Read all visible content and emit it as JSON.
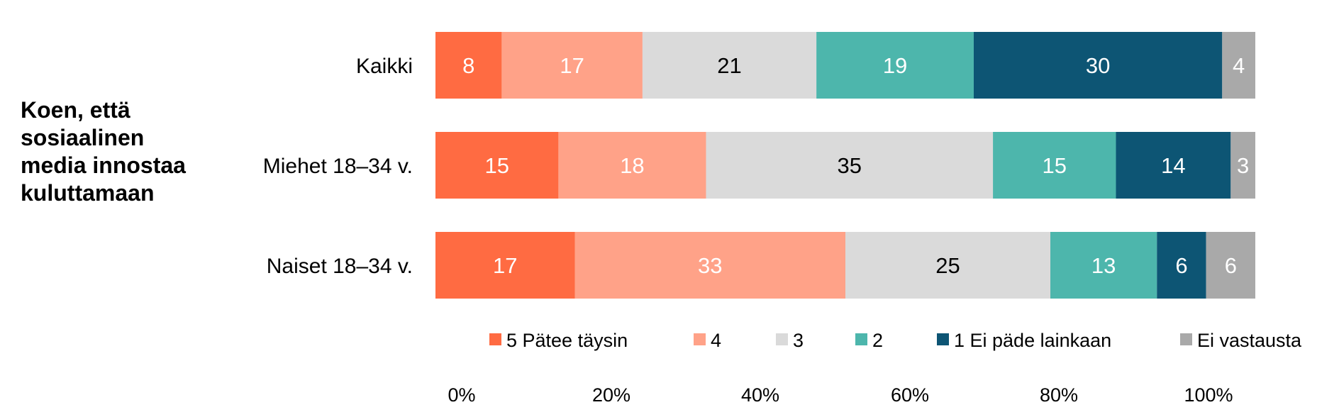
{
  "chart_data": {
    "type": "bar",
    "orientation": "horizontal",
    "stacked": true,
    "side_title": [
      "Koen, että",
      "sosiaalinen",
      "media innostaa",
      "kuluttamaan"
    ],
    "categories": [
      "Kaikki",
      "Miehet 18–34 v.",
      "Naiset 18–34 v."
    ],
    "series": [
      {
        "name": "5 Pätee täysin",
        "color": "#FF6B42",
        "label_color": "#ffffff",
        "values": [
          8,
          15,
          17
        ]
      },
      {
        "name": "4",
        "color": "#FFA288",
        "label_color": "#ffffff",
        "values": [
          17,
          18,
          33
        ]
      },
      {
        "name": "3",
        "color": "#DADADA",
        "label_color": "#000000",
        "values": [
          21,
          35,
          25
        ]
      },
      {
        "name": "2",
        "color": "#4DB6AC",
        "label_color": "#ffffff",
        "values": [
          19,
          15,
          13
        ]
      },
      {
        "name": "1 Ei päde lainkaan",
        "color": "#0D5574",
        "label_color": "#ffffff",
        "values": [
          30,
          14,
          6
        ]
      },
      {
        "name": "Ei vastausta",
        "color": "#A9A9A9",
        "label_color": "#ffffff",
        "values": [
          4,
          3,
          6
        ]
      }
    ],
    "x_ticks": [
      "0%",
      "20%",
      "40%",
      "60%",
      "80%",
      "100%"
    ],
    "legend_position": "bottom",
    "grid": false
  }
}
